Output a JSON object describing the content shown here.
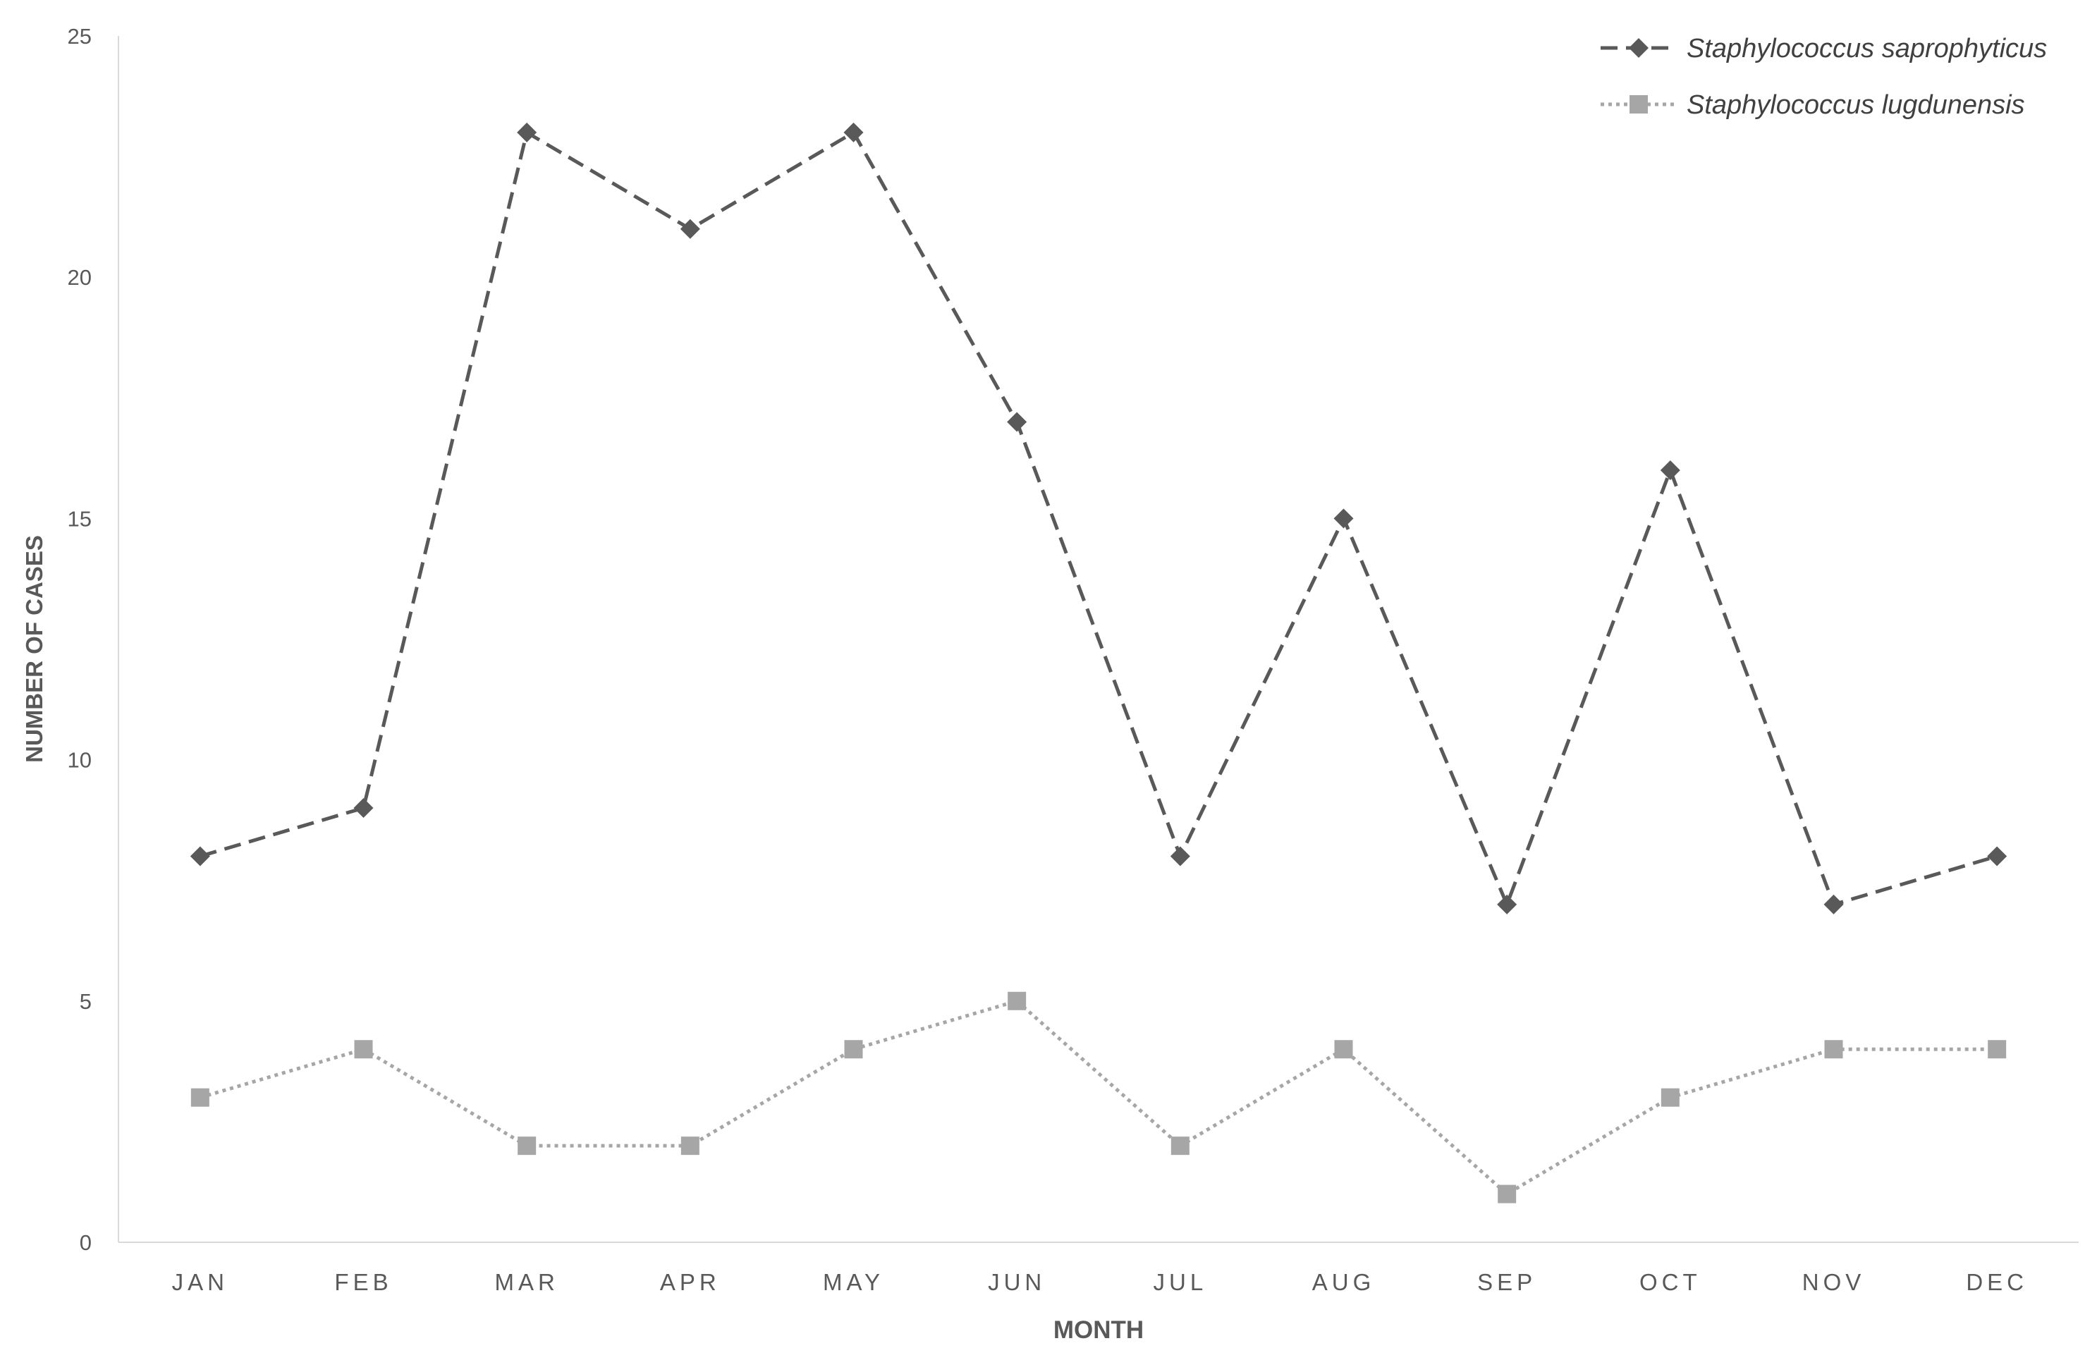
{
  "chart_data": {
    "type": "line",
    "title": "",
    "xlabel": "MONTH",
    "ylabel": "NUMBER OF CASES",
    "ylim": [
      0,
      25
    ],
    "yticks": [
      0,
      5,
      10,
      15,
      20,
      25
    ],
    "grid": false,
    "legend_position": "top-right",
    "categories": [
      "JAN",
      "FEB",
      "MAR",
      "APR",
      "MAY",
      "JUN",
      "JUL",
      "AUG",
      "SEP",
      "OCT",
      "NOV",
      "DEC"
    ],
    "series": [
      {
        "name": "Staphylococcus saprophyticus",
        "values": [
          8,
          9,
          23,
          21,
          23,
          17,
          8,
          15,
          7,
          16,
          7,
          8
        ],
        "color": "#595959",
        "line_style": "dashed",
        "marker": "diamond"
      },
      {
        "name": "Staphylococcus lugdunensis",
        "values": [
          3,
          4,
          2,
          2,
          4,
          5,
          2,
          4,
          1,
          3,
          4,
          4
        ],
        "color": "#a6a6a6",
        "line_style": "dotted",
        "marker": "square"
      }
    ]
  }
}
